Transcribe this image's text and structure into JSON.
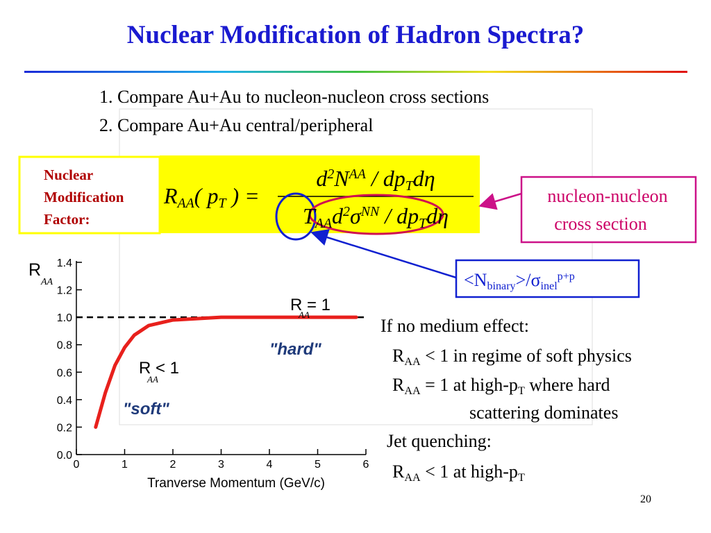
{
  "slide": {
    "title": "Nuclear Modification of Hadron Spectra?",
    "page_number": "20"
  },
  "list": [
    "1. Compare Au+Au to nucleon-nucleon cross sections",
    "2. Compare Au+Au central/peripheral"
  ],
  "factor_label": [
    "Nuclear",
    "Modification",
    "Factor:"
  ],
  "formula": {
    "lhs": [
      {
        "text": "R"
      },
      {
        "text": "AA",
        "pos": "sub"
      },
      {
        "text": "( p"
      },
      {
        "text": "T",
        "pos": "sub"
      },
      {
        "text": " ) ="
      }
    ],
    "numerator": [
      {
        "text": "d"
      },
      {
        "text": "2",
        "pos": "sup"
      },
      {
        "text": "N"
      },
      {
        "text": "AA",
        "pos": "sup"
      },
      {
        "text": " / dp"
      },
      {
        "text": "T",
        "pos": "sub"
      },
      {
        "text": "dη"
      }
    ],
    "denominator": [
      {
        "text": "T"
      },
      {
        "text": "AA",
        "pos": "sub"
      },
      {
        "text": "d"
      },
      {
        "text": "2",
        "pos": "sup"
      },
      {
        "text": "σ"
      },
      {
        "text": "NN",
        "pos": "sup"
      },
      {
        "text": " / dp"
      },
      {
        "text": "T",
        "pos": "sub"
      },
      {
        "text": "dη"
      }
    ]
  },
  "callout_nn": [
    "nucleon-nucleon",
    "cross section"
  ],
  "callout_binary": [
    {
      "text": "<N"
    },
    {
      "text": "binary",
      "pos": "sub"
    },
    {
      "text": ">/σ"
    },
    {
      "text": "inel",
      "pos": "sub"
    },
    {
      "text": "p+p",
      "pos": "sup"
    }
  ],
  "notes": [
    [
      {
        "text": "If no medium effect:"
      }
    ],
    [
      {
        "text": "R"
      },
      {
        "text": "AA",
        "pos": "sub"
      },
      {
        "text": " < 1 in regime of soft physics"
      }
    ],
    [
      {
        "text": "R"
      },
      {
        "text": "AA",
        "pos": "sub"
      },
      {
        "text": " = 1 at high-p"
      },
      {
        "text": "T",
        "pos": "sub"
      },
      {
        "text": " where hard"
      }
    ],
    [
      {
        "text": "scattering dominates"
      }
    ],
    [
      {
        "text": "Jet quenching:"
      }
    ],
    [
      {
        "text": "R"
      },
      {
        "text": "AA",
        "pos": "sub"
      },
      {
        "text": " < 1 at high-p"
      },
      {
        "text": "T",
        "pos": "sub"
      }
    ]
  ],
  "chart": {
    "type": "line",
    "x_label": "Tranverse Momentum (GeV/c)",
    "y_label": {
      "text": "R",
      "sub": "AA"
    },
    "x": [
      0.4,
      0.6,
      0.8,
      1.0,
      1.2,
      1.5,
      2.0,
      2.5,
      3.0,
      4.0,
      5.0,
      5.8
    ],
    "values": [
      0.2,
      0.45,
      0.65,
      0.78,
      0.87,
      0.94,
      0.98,
      0.99,
      1.0,
      1.0,
      1.0,
      1.0
    ],
    "color": "#e8201c",
    "reference_line": 1.0,
    "xlim": [
      0,
      6
    ],
    "ylim": [
      0,
      1.4
    ],
    "xticks": [
      0,
      1,
      2,
      3,
      4,
      5,
      6
    ],
    "yticks": [
      {
        "value": 0,
        "label": "0.0"
      },
      {
        "value": 0.2,
        "label": "0.2"
      },
      {
        "value": 0.4,
        "label": "0.4"
      },
      {
        "value": 0.6,
        "label": "0.6"
      },
      {
        "value": 0.8,
        "label": "0.8"
      },
      {
        "value": 1.0,
        "label": "1.0"
      },
      {
        "value": 1.2,
        "label": "1.2"
      },
      {
        "value": 1.4,
        "label": "1.4"
      }
    ],
    "annotations": [
      {
        "text": "R = 1",
        "sub": "AA"
      },
      {
        "text": "\"hard\""
      },
      {
        "text": "R < 1",
        "sub": "AA"
      },
      {
        "text": "\"soft\""
      }
    ]
  }
}
